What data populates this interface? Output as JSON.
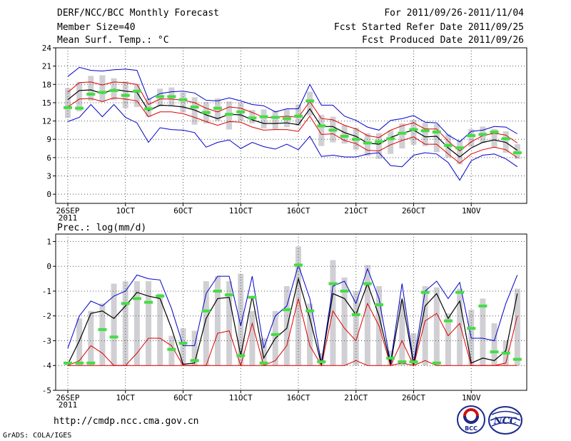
{
  "header": {
    "title": "DERF/NCC/BCC Monthly Forecast",
    "member_size": "Member Size=40",
    "variable": "Mean Surf. Temp.: °C",
    "period": "For 2011/09/26-2011/11/04",
    "refer_date": "Fcst Started Refer Date 2011/09/25",
    "produced_date": "Fcst Produced Date 2011/09/26"
  },
  "footer": {
    "url": "http://cmdp.ncc.cma.gov.cn",
    "grads": "GrADS: COLA/IGES",
    "logo_bcc": "BCC",
    "logo_ncc": "NCC"
  },
  "colors": {
    "box": "#d0d0d4",
    "median": "#44dd44",
    "envelope": "#0000cc",
    "mean": "#000000",
    "std": "#dd0000",
    "grid": "#555555"
  },
  "chart_data": [
    {
      "type": "line",
      "title": "Mean Surf. Temp.: °C",
      "x_tick_labels": [
        "26SEP",
        "1OCT",
        "6OCT",
        "11OCT",
        "16OCT",
        "21OCT",
        "26OCT",
        "1NOV"
      ],
      "x_year_label": "2011",
      "y_ticks": [
        0,
        3,
        6,
        9,
        12,
        15,
        18,
        21,
        24
      ],
      "ylim": [
        -1.5,
        24
      ],
      "days": 40,
      "series": [
        {
          "name": "max",
          "values": [
            19.3,
            20.8,
            20.3,
            20.2,
            20.4,
            20.5,
            20.3,
            15.5,
            16.5,
            16.8,
            16.9,
            16.6,
            15.4,
            15.3,
            15.8,
            15.3,
            14.7,
            14.5,
            13.5,
            14.0,
            14.0,
            18.0,
            14.6,
            14.6,
            12.8,
            12.1,
            11.0,
            10.5,
            12.1,
            12.4,
            12.9,
            11.8,
            11.7,
            9.7,
            8.6,
            10.3,
            10.5,
            11.1,
            11.0,
            9.9
          ]
        },
        {
          "name": "mean_plus_std",
          "values": [
            16.7,
            18.3,
            18.4,
            17.9,
            18.4,
            18.3,
            18.0,
            14.7,
            15.6,
            15.6,
            15.4,
            15.0,
            14.1,
            13.5,
            14.3,
            14.1,
            13.4,
            12.6,
            12.6,
            12.8,
            12.6,
            15.2,
            12.4,
            12.2,
            11.3,
            10.7,
            9.6,
            9.3,
            10.5,
            11.2,
            11.7,
            10.7,
            10.7,
            8.7,
            7.1,
            8.6,
            9.6,
            10.0,
            9.7,
            8.4
          ]
        },
        {
          "name": "mean",
          "values": [
            15.5,
            17.0,
            17.1,
            16.5,
            17.2,
            16.9,
            16.7,
            13.7,
            14.6,
            14.5,
            14.3,
            13.8,
            13.0,
            12.4,
            13.1,
            13.0,
            12.2,
            11.6,
            11.6,
            11.7,
            11.4,
            14.0,
            11.1,
            11.1,
            10.1,
            9.5,
            8.4,
            8.2,
            9.3,
            10.0,
            10.5,
            9.4,
            9.5,
            7.6,
            6.1,
            7.6,
            8.5,
            8.9,
            8.5,
            7.2
          ]
        },
        {
          "name": "mean_minus_std",
          "values": [
            14.3,
            15.6,
            15.7,
            15.2,
            15.8,
            15.6,
            15.3,
            12.7,
            13.5,
            13.5,
            13.2,
            12.6,
            11.9,
            11.3,
            11.9,
            11.8,
            11.0,
            10.5,
            10.6,
            10.6,
            10.3,
            12.8,
            9.8,
            9.9,
            8.8,
            8.3,
            7.2,
            7.1,
            8.1,
            8.8,
            9.4,
            8.2,
            8.2,
            6.6,
            5.1,
            6.6,
            7.3,
            7.7,
            7.3,
            6.0
          ]
        },
        {
          "name": "min",
          "values": [
            11.9,
            12.6,
            14.7,
            12.7,
            14.7,
            12.6,
            11.7,
            8.5,
            10.9,
            10.6,
            10.5,
            10.1,
            7.7,
            8.5,
            8.9,
            7.5,
            8.5,
            7.8,
            7.4,
            8.2,
            7.3,
            9.5,
            6.2,
            6.4,
            6.1,
            6.1,
            6.6,
            6.8,
            4.7,
            4.5,
            6.4,
            6.8,
            6.6,
            5.2,
            2.3,
            5.5,
            6.4,
            6.6,
            5.8,
            4.5
          ]
        },
        {
          "name": "median",
          "values": [
            14.2,
            14.1,
            16.4,
            16.7,
            17.0,
            16.2,
            16.9,
            14.0,
            16.0,
            16.0,
            15.5,
            14.3,
            13.4,
            14.1,
            13.1,
            13.5,
            12.5,
            12.7,
            12.6,
            12.4,
            12.8,
            15.3,
            11.2,
            10.5,
            9.5,
            9.0,
            8.4,
            8.6,
            9.1,
            10.0,
            10.6,
            10.4,
            10.2,
            8.0,
            7.6,
            9.6,
            9.8,
            10.2,
            9.1,
            6.8
          ]
        },
        {
          "name": "box_high",
          "values": [
            17.4,
            18.4,
            19.4,
            19.5,
            19.0,
            18.5,
            18.1,
            15.7,
            17.3,
            17.5,
            16.7,
            15.9,
            15.1,
            15.7,
            15.2,
            15.0,
            13.8,
            13.9,
            13.7,
            13.9,
            14.7,
            16.8,
            13.0,
            12.7,
            11.3,
            10.9,
            10.0,
            10.0,
            10.5,
            11.6,
            12.2,
            11.7,
            11.5,
            9.8,
            8.9,
            10.7,
            11.1,
            10.7,
            10.3,
            8.2
          ]
        },
        {
          "name": "box_low",
          "values": [
            12.5,
            13.6,
            15.3,
            15.1,
            15.4,
            14.1,
            14.3,
            12.7,
            14.4,
            14.4,
            13.4,
            11.4,
            11.6,
            12.0,
            10.6,
            12.0,
            11.6,
            10.8,
            10.6,
            11.0,
            11.2,
            12.9,
            7.9,
            8.5,
            8.3,
            7.3,
            6.3,
            5.8,
            6.6,
            7.5,
            8.1,
            7.9,
            6.9,
            6.0,
            4.9,
            7.8,
            8.4,
            7.6,
            6.8,
            5.8
          ]
        }
      ]
    },
    {
      "type": "line",
      "title": "Prec.: log(mm/d)",
      "x_tick_labels": [
        "26SEP",
        "1OCT",
        "6OCT",
        "11OCT",
        "16OCT",
        "21OCT",
        "26OCT",
        "1NOV"
      ],
      "x_year_label": "2011",
      "y_ticks": [
        -5,
        -4,
        -3,
        -2,
        -1,
        0,
        1
      ],
      "ylim": [
        -5,
        1.3
      ],
      "days": 40,
      "series": [
        {
          "name": "max",
          "values": [
            -3.3,
            -2.0,
            -1.4,
            -1.6,
            -1.2,
            -1.0,
            -0.35,
            -0.5,
            -0.55,
            -1.7,
            -3.2,
            -3.2,
            -1.1,
            -0.4,
            -0.4,
            -2.4,
            -0.4,
            -3.3,
            -2.0,
            -1.6,
            0.05,
            -1.3,
            -3.9,
            -0.8,
            -0.6,
            -1.5,
            -0.1,
            -1.3,
            -3.9,
            -0.7,
            -3.9,
            -1.0,
            -0.6,
            -1.3,
            -0.65,
            -2.9,
            -2.9,
            -3.0,
            -1.5,
            -0.35
          ]
        },
        {
          "name": "mean",
          "values": [
            -3.95,
            -3.0,
            -1.9,
            -1.8,
            -2.1,
            -1.6,
            -1.05,
            -1.2,
            -1.3,
            -2.5,
            -3.95,
            -3.9,
            -2.1,
            -1.3,
            -1.25,
            -3.6,
            -1.2,
            -3.7,
            -2.9,
            -2.5,
            -0.5,
            -2.1,
            -3.95,
            -1.1,
            -1.3,
            -1.95,
            -0.7,
            -2.0,
            -3.95,
            -1.3,
            -3.95,
            -1.6,
            -1.1,
            -2.1,
            -1.4,
            -3.9,
            -3.7,
            -3.8,
            -3.4,
            -1.1
          ]
        },
        {
          "name": "mean_plus_std",
          "values": [
            -4.0,
            -3.8,
            -3.2,
            -3.5,
            -4.0,
            -4.0,
            -3.5,
            -2.9,
            -2.9,
            -3.2,
            -4.0,
            -4.0,
            -4.0,
            -2.7,
            -2.6,
            -4.0,
            -2.3,
            -4.0,
            -3.8,
            -3.2,
            -1.3,
            -3.2,
            -4.0,
            -1.8,
            -2.5,
            -3.0,
            -1.5,
            -2.4,
            -4.0,
            -3.0,
            -4.0,
            -2.2,
            -1.9,
            -2.8,
            -2.3,
            -4.0,
            -4.0,
            -4.0,
            -3.9,
            -2.0
          ]
        },
        {
          "name": "mean_minus_std",
          "values": [
            -4.0,
            -4.0,
            -4.0,
            -4.0,
            -4.0,
            -4.0,
            -4.0,
            -4.0,
            -4.0,
            -4.0,
            -4.0,
            -4.0,
            -4.0,
            -4.0,
            -4.0,
            -4.0,
            -4.0,
            -4.0,
            -4.0,
            -4.0,
            -4.0,
            -4.0,
            -4.0,
            -4.0,
            -4.0,
            -3.8,
            -4.0,
            -4.0,
            -4.0,
            -3.9,
            -4.0,
            -3.8,
            -4.0,
            -4.0,
            -4.0,
            -4.0,
            -4.0,
            -4.0,
            -4.0,
            -4.0
          ]
        },
        {
          "name": "median",
          "values": [
            -3.9,
            -3.9,
            -3.9,
            -2.55,
            -2.85,
            -1.5,
            -1.3,
            -1.45,
            -1.2,
            -3.35,
            -3.1,
            -3.8,
            -1.8,
            -1.0,
            -1.15,
            -3.6,
            -1.25,
            -3.9,
            -2.75,
            -1.75,
            0.05,
            -1.8,
            -3.85,
            -0.7,
            -1.0,
            -1.95,
            -0.7,
            -1.55,
            -3.7,
            -3.85,
            -3.85,
            -1.05,
            -3.9,
            -2.2,
            -1.05,
            -2.5,
            -1.6,
            -3.45,
            -3.5,
            -3.75
          ]
        },
        {
          "name": "box_high",
          "values": [
            -3.9,
            -2.1,
            -1.8,
            -1.5,
            -0.7,
            -0.6,
            -0.6,
            -0.6,
            -1.1,
            -2.8,
            -2.5,
            -2.6,
            -0.6,
            -0.4,
            -0.6,
            -0.3,
            -1.8,
            -2.9,
            -1.8,
            -0.8,
            0.8,
            -1.5,
            -3.5,
            0.25,
            -0.45,
            -1.0,
            0.05,
            -0.8,
            -3.4,
            -1.4,
            -2.7,
            -0.8,
            -0.85,
            -1.9,
            -0.9,
            -1.75,
            -1.3,
            -2.3,
            -3.0,
            -0.9
          ]
        },
        {
          "name": "box_low",
          "values": [
            -4.0,
            -4.0,
            -4.0,
            -4.0,
            -4.0,
            -4.0,
            -4.0,
            -4.0,
            -4.0,
            -4.0,
            -4.0,
            -4.0,
            -4.0,
            -4.0,
            -4.0,
            -4.0,
            -4.0,
            -4.0,
            -4.0,
            -4.0,
            -4.0,
            -4.0,
            -4.0,
            -4.0,
            -4.0,
            -4.0,
            -4.0,
            -4.0,
            -4.0,
            -4.0,
            -4.0,
            -4.0,
            -4.0,
            -4.0,
            -4.0,
            -4.0,
            -4.0,
            -4.0,
            -4.0,
            -4.0
          ]
        }
      ]
    }
  ]
}
